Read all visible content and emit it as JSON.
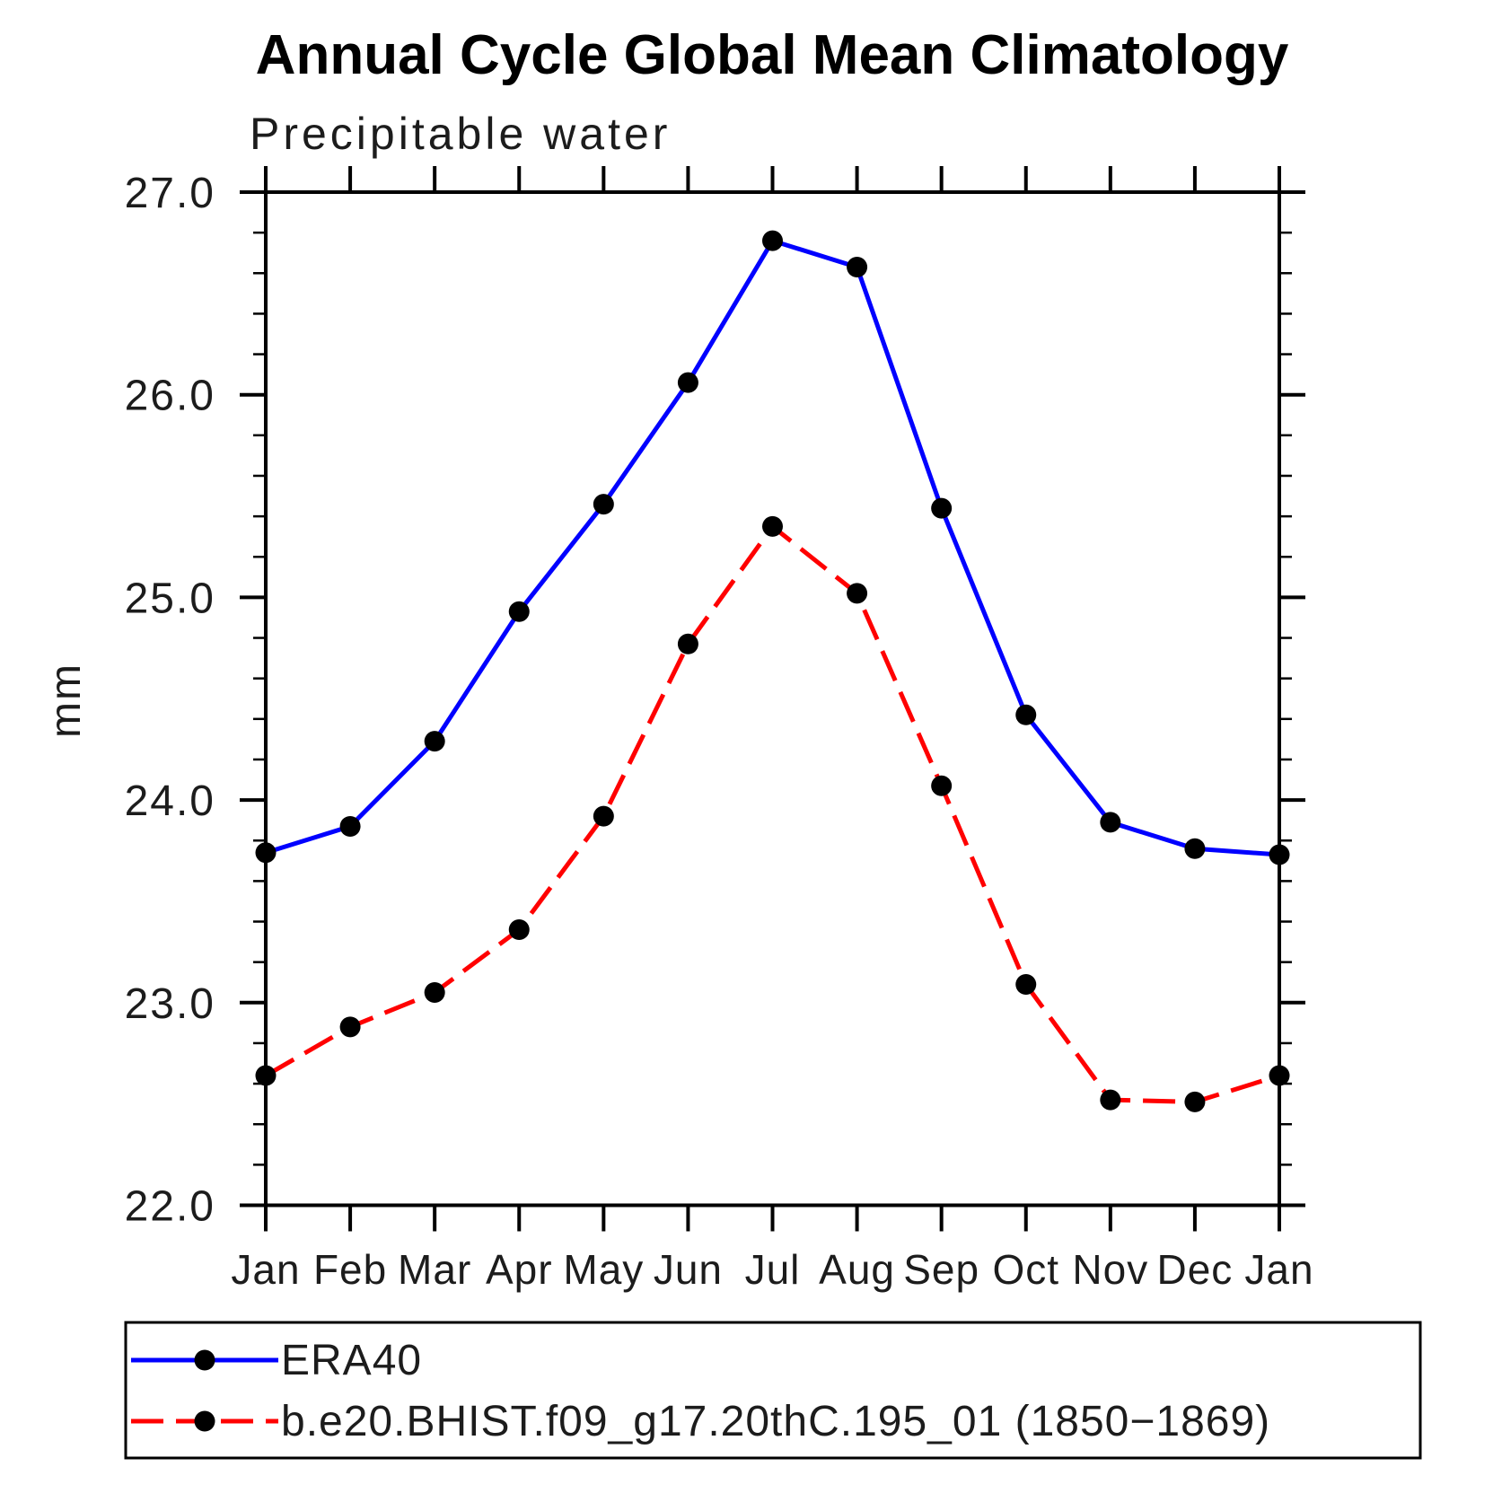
{
  "title": "Annual Cycle Global Mean Climatology",
  "subtitle": "Precipitable water",
  "ylabel": "mm",
  "chart_data": {
    "type": "line",
    "categories": [
      "Jan",
      "Feb",
      "Mar",
      "Apr",
      "May",
      "Jun",
      "Jul",
      "Aug",
      "Sep",
      "Oct",
      "Nov",
      "Dec",
      "Jan"
    ],
    "ylim": [
      22.0,
      27.0
    ],
    "ytick_major_values": [
      22.0,
      23.0,
      24.0,
      25.0,
      26.0,
      27.0
    ],
    "ytick_labels": [
      "22.0",
      "23.0",
      "24.0",
      "25.0",
      "26.0",
      "27.0"
    ],
    "ytick_minor_step": 0.2,
    "grid": false,
    "legend_position": "bottom",
    "series": [
      {
        "name": "ERA40",
        "color": "#0000ff",
        "style": "solid",
        "marker": "circle",
        "marker_color": "#000000",
        "values": [
          23.74,
          23.87,
          24.29,
          24.93,
          25.46,
          26.06,
          26.76,
          26.63,
          25.44,
          24.42,
          23.89,
          23.76,
          23.73
        ]
      },
      {
        "name": "b.e20.BHIST.f09_g17.20thC.195_01 (1850−1869)",
        "color": "#ff0000",
        "style": "dashed",
        "marker": "circle",
        "marker_color": "#000000",
        "values": [
          22.64,
          22.88,
          23.05,
          23.36,
          23.92,
          24.77,
          25.35,
          25.02,
          24.07,
          23.09,
          22.52,
          22.51,
          22.64
        ]
      }
    ]
  }
}
